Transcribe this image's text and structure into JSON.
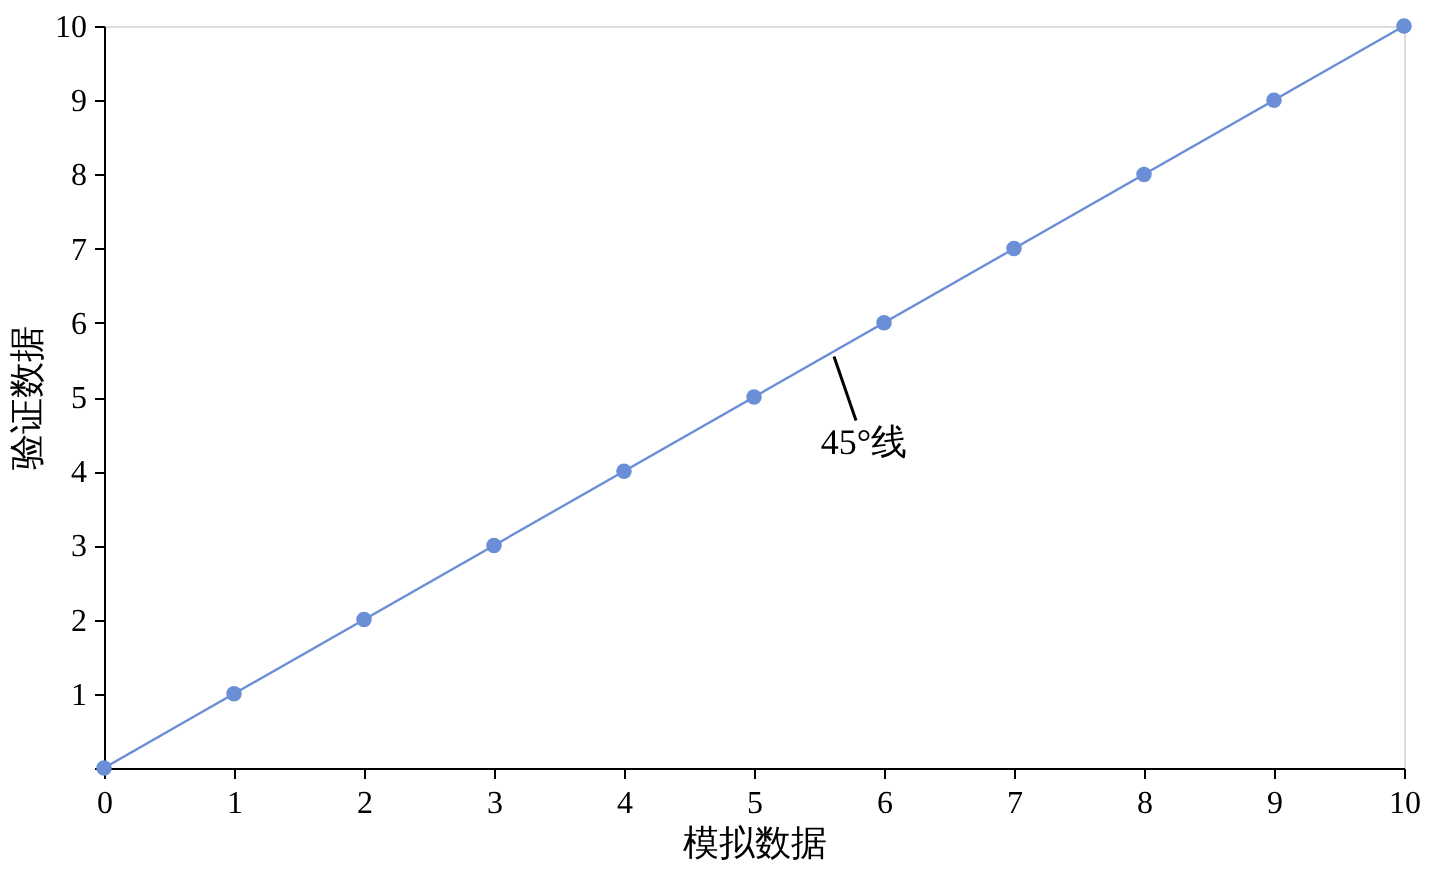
{
  "chart_data": {
    "type": "scatter",
    "xlabel": "模拟数据",
    "ylabel": "验证数据",
    "xlim": [
      0,
      10
    ],
    "ylim": [
      0,
      10
    ],
    "xticks": [
      0,
      1,
      2,
      3,
      4,
      5,
      6,
      7,
      8,
      9,
      10
    ],
    "yticks": [
      {
        "value": 0,
        "label": null
      },
      1,
      2,
      3,
      4,
      5,
      6,
      7,
      8,
      9,
      10
    ],
    "grid": false,
    "marker": "circle",
    "series": [
      {
        "type": "line",
        "color": "#6b8fd6",
        "x": [
          0,
          10
        ],
        "values": [
          0,
          10
        ],
        "line_style": "solid",
        "marker": "none"
      },
      {
        "type": "scatter",
        "color": "#6b8fd6",
        "x": [
          0,
          1,
          2,
          3,
          4,
          5,
          6,
          7,
          8,
          9,
          10
        ],
        "values": [
          0,
          1,
          2,
          3,
          4,
          5,
          6,
          7,
          8,
          9,
          10
        ]
      }
    ],
    "annotations": [
      {
        "text": "45°线",
        "x": 5.6,
        "y": 5.6
      }
    ]
  }
}
